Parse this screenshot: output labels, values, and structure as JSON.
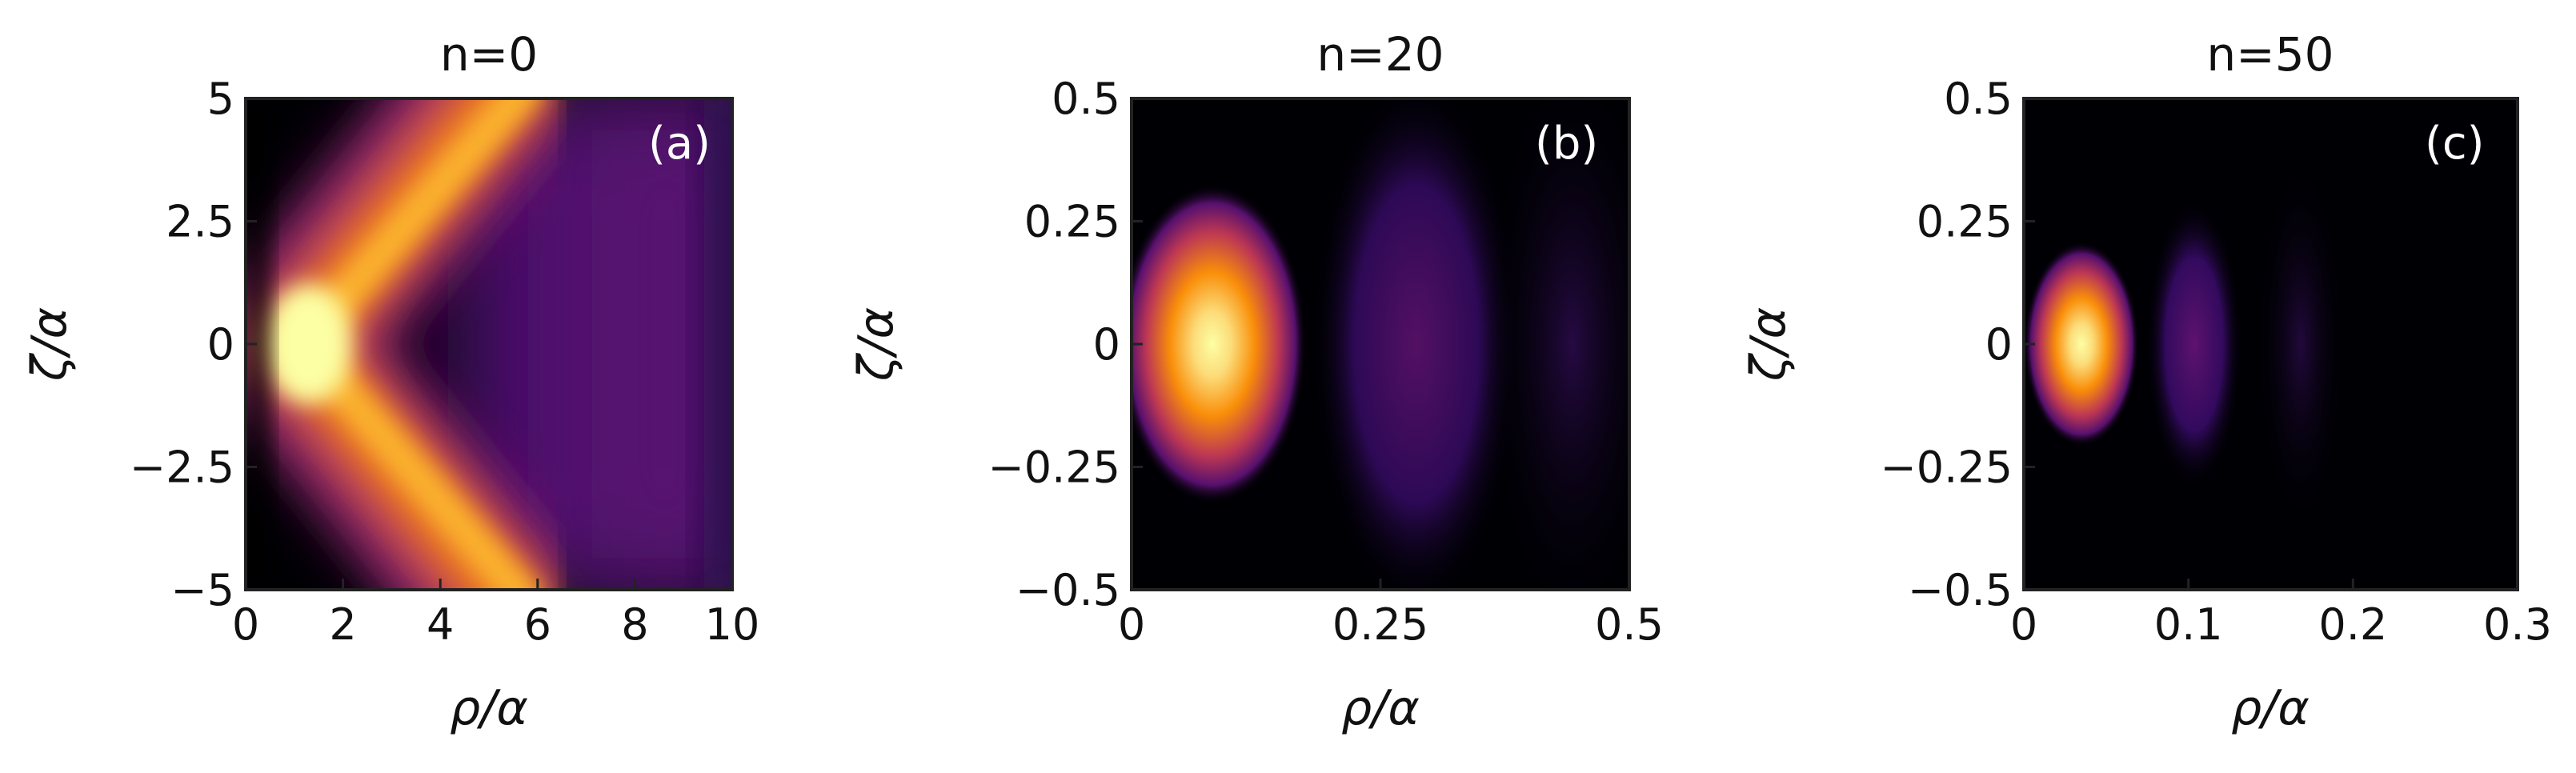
{
  "chart_data": [
    {
      "type": "heatmap",
      "title": "n=0",
      "panel_label": "(a)",
      "xlabel": "ρ/α",
      "ylabel": "ζ/α",
      "xlim": [
        0,
        10
      ],
      "ylim": [
        -5,
        5
      ],
      "xticks": [
        "0",
        "2",
        "4",
        "6",
        "8",
        "10"
      ],
      "yticks": [
        "5",
        "2.5",
        "0",
        "−2.5",
        "−5"
      ],
      "xtick_values": [
        0,
        2,
        4,
        6,
        8,
        10
      ],
      "ytick_values": [
        5,
        2.5,
        0,
        -2.5,
        -5
      ],
      "colormap": "inferno",
      "features": {
        "shape": "V-shaped bright ridge opening to the right",
        "peak": {
          "x": 1.0,
          "y": 0
        },
        "ridge_at_y_edges": {
          "x": 5.0,
          "y": [
            -5,
            5
          ]
        }
      }
    },
    {
      "type": "heatmap",
      "title": "n=20",
      "panel_label": "(b)",
      "xlabel": "ρ/α",
      "ylabel": "ζ/α",
      "xlim": [
        0,
        0.5
      ],
      "ylim": [
        -0.5,
        0.5
      ],
      "xticks": [
        "0",
        "0.25",
        "0.5"
      ],
      "yticks": [
        "0.5",
        "0.25",
        "0",
        "−0.25",
        "−0.5"
      ],
      "xtick_values": [
        0,
        0.25,
        0.5
      ],
      "ytick_values": [
        0.5,
        0.25,
        0,
        -0.25,
        -0.5
      ],
      "colormap": "inferno",
      "features": {
        "peak": {
          "x": 0.08,
          "y": 0
        },
        "secondary_lobes_x": [
          0.28,
          0.45
        ]
      }
    },
    {
      "type": "heatmap",
      "title": "n=50",
      "panel_label": "(c)",
      "xlabel": "ρ/α",
      "ylabel": "ζ/α",
      "xlim": [
        0,
        0.3
      ],
      "ylim": [
        -0.5,
        0.5
      ],
      "xticks": [
        "0",
        "0.1",
        "0.2",
        "0.3"
      ],
      "yticks": [
        "0.5",
        "0.25",
        "0",
        "−0.25",
        "−0.5"
      ],
      "xtick_values": [
        0,
        0.1,
        0.2,
        0.3
      ],
      "ytick_values": [
        0.5,
        0.25,
        0,
        -0.25,
        -0.5
      ],
      "colormap": "inferno",
      "features": {
        "peak": {
          "x": 0.035,
          "y": 0
        },
        "secondary_lobes_x": [
          0.105,
          0.165
        ]
      }
    }
  ]
}
